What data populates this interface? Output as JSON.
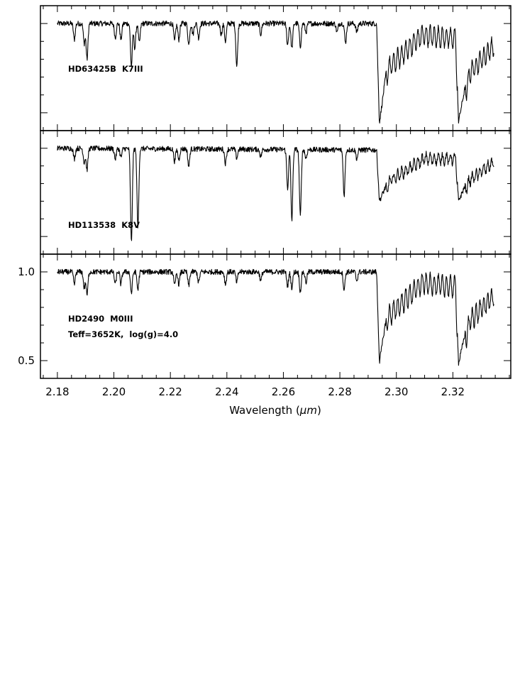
{
  "chart_data": {
    "type": "line",
    "xlabel": "Wavelength (μm)",
    "xlabel_parts": {
      "text": "Wavelength (",
      "unit": "μm",
      "close": ")"
    },
    "xlim": [
      2.174,
      2.3405
    ],
    "x_ticks": [
      {
        "value": 2.18,
        "label": "2.18"
      },
      {
        "value": 2.2,
        "label": "2.20"
      },
      {
        "value": 2.22,
        "label": "2.22"
      },
      {
        "value": 2.24,
        "label": "2.24"
      },
      {
        "value": 2.26,
        "label": "2.26"
      },
      {
        "value": 2.28,
        "label": "2.28"
      },
      {
        "value": 2.3,
        "label": "2.30"
      },
      {
        "value": 2.32,
        "label": "2.32"
      }
    ],
    "x_minor_step": 0.005,
    "ylim": [
      0.4,
      1.1
    ],
    "y_ticks": [
      {
        "value": 0.5,
        "label": "0.5"
      },
      {
        "value": 1.0,
        "label": "1.0"
      }
    ],
    "y_minor_step": 0.1,
    "spectrum_x_range": [
      2.18,
      2.3345
    ],
    "panels": [
      {
        "name": "HD63425B",
        "label": "HD63425B  K7III",
        "show_y_tick_labels": false,
        "continuum": [
          [
            2.18,
            1.0
          ],
          [
            2.293,
            1.0
          ],
          [
            2.294,
            0.44
          ],
          [
            2.297,
            0.8
          ],
          [
            2.309,
            0.99
          ],
          [
            2.321,
            0.97
          ],
          [
            2.322,
            0.45
          ],
          [
            2.326,
            0.78
          ],
          [
            2.3345,
            0.93
          ]
        ],
        "bandhead_ripple": 0.11,
        "lines": [
          {
            "x": 2.186,
            "depth": 0.09
          },
          {
            "x": 2.1895,
            "depth": 0.11
          },
          {
            "x": 2.1905,
            "depth": 0.2
          },
          {
            "x": 2.2005,
            "depth": 0.08
          },
          {
            "x": 2.2025,
            "depth": 0.09
          },
          {
            "x": 2.2062,
            "depth": 0.24
          },
          {
            "x": 2.2074,
            "depth": 0.14
          },
          {
            "x": 2.209,
            "depth": 0.11
          },
          {
            "x": 2.2215,
            "depth": 0.1
          },
          {
            "x": 2.223,
            "depth": 0.09
          },
          {
            "x": 2.2265,
            "depth": 0.12
          },
          {
            "x": 2.228,
            "depth": 0.06
          },
          {
            "x": 2.23,
            "depth": 0.08
          },
          {
            "x": 2.238,
            "depth": 0.06
          },
          {
            "x": 2.2395,
            "depth": 0.1
          },
          {
            "x": 2.2435,
            "depth": 0.24
          },
          {
            "x": 2.252,
            "depth": 0.06
          },
          {
            "x": 2.2615,
            "depth": 0.12
          },
          {
            "x": 2.263,
            "depth": 0.14
          },
          {
            "x": 2.266,
            "depth": 0.13
          },
          {
            "x": 2.268,
            "depth": 0.05
          },
          {
            "x": 2.279,
            "depth": 0.05
          },
          {
            "x": 2.282,
            "depth": 0.11
          },
          {
            "x": 2.286,
            "depth": 0.05
          }
        ]
      },
      {
        "name": "HD113538",
        "label": "HD113538  K8V",
        "show_y_tick_labels": false,
        "continuum": [
          [
            2.18,
            1.0
          ],
          [
            2.293,
            0.99
          ],
          [
            2.294,
            0.7
          ],
          [
            2.298,
            0.85
          ],
          [
            2.31,
            0.97
          ],
          [
            2.321,
            0.97
          ],
          [
            2.322,
            0.7
          ],
          [
            2.326,
            0.85
          ],
          [
            2.3345,
            0.95
          ]
        ],
        "bandhead_ripple": 0.06,
        "lines": [
          {
            "x": 2.186,
            "depth": 0.06
          },
          {
            "x": 2.1895,
            "depth": 0.08
          },
          {
            "x": 2.1905,
            "depth": 0.12
          },
          {
            "x": 2.2005,
            "depth": 0.06
          },
          {
            "x": 2.2025,
            "depth": 0.05
          },
          {
            "x": 2.2062,
            "depth": 0.53
          },
          {
            "x": 2.2085,
            "depth": 0.45
          },
          {
            "x": 2.2215,
            "depth": 0.07
          },
          {
            "x": 2.223,
            "depth": 0.06
          },
          {
            "x": 2.2265,
            "depth": 0.1
          },
          {
            "x": 2.2395,
            "depth": 0.08
          },
          {
            "x": 2.2435,
            "depth": 0.05
          },
          {
            "x": 2.252,
            "depth": 0.04
          },
          {
            "x": 2.2615,
            "depth": 0.22
          },
          {
            "x": 2.263,
            "depth": 0.4
          },
          {
            "x": 2.266,
            "depth": 0.38
          },
          {
            "x": 2.268,
            "depth": 0.05
          },
          {
            "x": 2.2815,
            "depth": 0.26
          },
          {
            "x": 2.286,
            "depth": 0.05
          }
        ]
      },
      {
        "name": "HD2490",
        "label": "HD2490  M0III",
        "label2": "Teff=3652K,  log(g)=4.0",
        "show_y_tick_labels": true,
        "continuum": [
          [
            2.18,
            1.0
          ],
          [
            2.293,
            1.0
          ],
          [
            2.294,
            0.49
          ],
          [
            2.297,
            0.8
          ],
          [
            2.309,
            0.99
          ],
          [
            2.321,
            0.97
          ],
          [
            2.322,
            0.48
          ],
          [
            2.326,
            0.78
          ],
          [
            2.3345,
            0.92
          ]
        ],
        "bandhead_ripple": 0.11,
        "lines": [
          {
            "x": 2.186,
            "depth": 0.07
          },
          {
            "x": 2.1895,
            "depth": 0.09
          },
          {
            "x": 2.1905,
            "depth": 0.13
          },
          {
            "x": 2.2005,
            "depth": 0.07
          },
          {
            "x": 2.2025,
            "depth": 0.07
          },
          {
            "x": 2.2062,
            "depth": 0.12
          },
          {
            "x": 2.2085,
            "depth": 0.1
          },
          {
            "x": 2.2215,
            "depth": 0.08
          },
          {
            "x": 2.223,
            "depth": 0.07
          },
          {
            "x": 2.2265,
            "depth": 0.08
          },
          {
            "x": 2.23,
            "depth": 0.06
          },
          {
            "x": 2.2395,
            "depth": 0.07
          },
          {
            "x": 2.2435,
            "depth": 0.06
          },
          {
            "x": 2.252,
            "depth": 0.05
          },
          {
            "x": 2.2615,
            "depth": 0.08
          },
          {
            "x": 2.263,
            "depth": 0.09
          },
          {
            "x": 2.266,
            "depth": 0.11
          },
          {
            "x": 2.268,
            "depth": 0.06
          },
          {
            "x": 2.2815,
            "depth": 0.1
          },
          {
            "x": 2.286,
            "depth": 0.05
          }
        ]
      }
    ]
  }
}
